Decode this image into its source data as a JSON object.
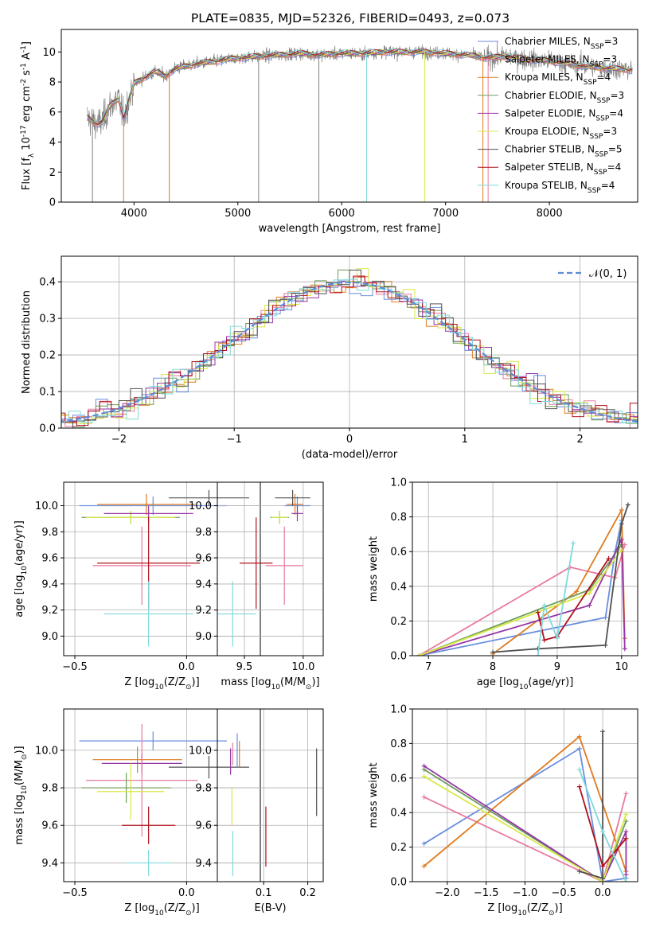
{
  "figure": {
    "title": "PLATE=0835, MJD=52326, FIBERID=0493, z=0.073"
  },
  "colors": {
    "Chabrier MILES": "#6a8ee0",
    "Salpeter MILES": "#e87a9e",
    "Kroupa MILES": "#e07b1f",
    "Chabrier ELODIE": "#6d9b5a",
    "Salpeter ELODIE": "#9637a8",
    "Kroupa ELODIE": "#d7e845",
    "Chabrier STELIB": "#505050",
    "Salpeter STELIB": "#b0101c",
    "Kroupa STELIB": "#7fd9dc",
    "data": "#808080",
    "normal": "#5b8bd6"
  },
  "chart_data": [
    {
      "id": "spectrum",
      "type": "line",
      "xlabel": "wavelength [Angstrom, rest frame]",
      "ylabel": "Flux [f_λ 10^-17 erg cm^-2 s^-1 A^-1]",
      "xlim": [
        3300,
        8850
      ],
      "ylim": [
        0,
        11.5
      ],
      "xticks": [
        4000,
        5000,
        6000,
        7000,
        8000
      ],
      "yticks": [
        0,
        2,
        4,
        6,
        8,
        10
      ],
      "legend": [
        "Chabrier MILES, N_SSP=3",
        "Salpeter MILES, N_SSP=3",
        "Kroupa MILES, N_SSP=4",
        "Chabrier ELODIE, N_SSP=3",
        "Salpeter ELODIE, N_SSP=4",
        "Kroupa ELODIE, N_SSP=3",
        "Chabrier STELIB, N_SSP=5",
        "Salpeter STELIB, N_SSP=4",
        "Kroupa STELIB, N_SSP=4"
      ],
      "continuum": {
        "x": [
          3550,
          3650,
          3700,
          3750,
          3800,
          3850,
          3900,
          3950,
          4000,
          4100,
          4200,
          4300,
          4400,
          4600,
          4800,
          5000,
          5200,
          5400,
          5600,
          5800,
          6000,
          6200,
          6400,
          6600,
          6800,
          7000,
          7200,
          7400,
          7600,
          7800,
          8000,
          8200,
          8400,
          8600,
          8800
        ],
        "y": [
          5.6,
          5.2,
          5.4,
          6.2,
          6.6,
          6.9,
          5.6,
          6.8,
          7.9,
          8.3,
          8.7,
          8.4,
          8.9,
          9.2,
          9.4,
          9.6,
          9.7,
          9.8,
          9.9,
          9.8,
          9.9,
          9.9,
          10.0,
          10.0,
          10.0,
          9.9,
          9.8,
          9.6,
          9.7,
          9.5,
          9.4,
          9.2,
          9.0,
          8.9,
          8.8
        ]
      },
      "spikes": [
        {
          "x": 3600,
          "y": 0
        },
        {
          "x": 3900,
          "y": 0
        },
        {
          "x": 4340,
          "y": 0
        },
        {
          "x": 5200,
          "y": 0
        },
        {
          "x": 5780,
          "y": 0
        },
        {
          "x": 6240,
          "y": 0
        },
        {
          "x": 6800,
          "y": 0
        },
        {
          "x": 7360,
          "y": 0
        },
        {
          "x": 7410,
          "y": 0
        }
      ]
    },
    {
      "id": "residuals",
      "type": "histogram",
      "xlabel": "(data-model)/error",
      "ylabel": "Normed distribution",
      "xlim": [
        -2.5,
        2.5
      ],
      "ylim": [
        0,
        0.47
      ],
      "xticks": [
        -2,
        -1,
        0,
        1,
        2
      ],
      "yticks": [
        0.0,
        0.1,
        0.2,
        0.3,
        0.4
      ],
      "bin_width": 0.1,
      "legend": [
        "𝒩(0, 1)"
      ]
    },
    {
      "id": "age-vs-Z",
      "type": "errorbar",
      "xlabel": "Z [log10(Z/Z⊙)]",
      "ylabel": "age  [log10(age/yr)]",
      "xlim": [
        -0.55,
        0.33
      ],
      "ylim": [
        8.85,
        10.18
      ],
      "xticks": [
        -0.5,
        0.0
      ],
      "yticks": [
        9.0,
        9.2,
        9.4,
        9.6,
        9.8,
        10.0
      ],
      "points": [
        {
          "model": "Chabrier MILES",
          "x": -0.15,
          "xerr": 0.33,
          "y": 10.0,
          "yerr": 0.07
        },
        {
          "model": "Kroupa MILES",
          "x": -0.18,
          "xerr": 0.22,
          "y": 10.01,
          "yerr": 0.08
        },
        {
          "model": "Chabrier ELODIE",
          "x": -0.25,
          "xerr": 0.22,
          "y": 9.91,
          "yerr": 0.05
        },
        {
          "model": "Kroupa ELODIE",
          "x": -0.25,
          "xerr": 0.2,
          "y": 9.91,
          "yerr": 0.05
        },
        {
          "model": "Salpeter ELODIE",
          "x": -0.17,
          "xerr": 0.2,
          "y": 9.94,
          "yerr": 0.06
        },
        {
          "model": "Chabrier STELIB",
          "x": 0.1,
          "xerr": 0.18,
          "y": 10.06,
          "yerr": 0.06
        },
        {
          "model": "Salpeter MILES",
          "x": -0.2,
          "xerr": 0.22,
          "y": 9.54,
          "yerr": 0.3
        },
        {
          "model": "Salpeter STELIB",
          "x": -0.17,
          "xerr": 0.23,
          "y": 9.56,
          "yerr": 0.35
        },
        {
          "model": "Kroupa STELIB",
          "x": -0.17,
          "xerr": 0.2,
          "y": 9.17,
          "yerr": 0.25
        }
      ]
    },
    {
      "id": "age-vs-mass",
      "type": "errorbar",
      "xlabel": "mass [log10(M/M⊙)]",
      "ylabel": "",
      "xlim": [
        9.27,
        10.17
      ],
      "ylim": [
        8.85,
        10.18
      ],
      "xticks": [
        9.5,
        10.0
      ],
      "yticks": [
        9.0,
        9.2,
        9.4,
        9.6,
        9.8,
        10.0
      ],
      "points": [
        {
          "model": "Chabrier MILES",
          "x": 9.95,
          "xerr": 0.11,
          "y": 10.0,
          "yerr": 0.07
        },
        {
          "model": "Kroupa MILES",
          "x": 9.93,
          "xerr": 0.07,
          "y": 10.01,
          "yerr": 0.08
        },
        {
          "model": "Chabrier ELODIE",
          "x": 9.8,
          "xerr": 0.08,
          "y": 9.91,
          "yerr": 0.05
        },
        {
          "model": "Kroupa ELODIE",
          "x": 9.8,
          "xerr": 0.07,
          "y": 9.91,
          "yerr": 0.05
        },
        {
          "model": "Salpeter ELODIE",
          "x": 9.95,
          "xerr": 0.05,
          "y": 9.94,
          "yerr": 0.06
        },
        {
          "model": "Chabrier STELIB",
          "x": 9.91,
          "xerr": 0.15,
          "y": 10.06,
          "yerr": 0.06
        },
        {
          "model": "Salpeter MILES",
          "x": 9.84,
          "xerr": 0.16,
          "y": 9.54,
          "yerr": 0.3
        },
        {
          "model": "Salpeter STELIB",
          "x": 9.6,
          "xerr": 0.14,
          "y": 9.56,
          "yerr": 0.35
        },
        {
          "model": "Kroupa STELIB",
          "x": 9.4,
          "xerr": 0.2,
          "y": 9.17,
          "yerr": 0.25
        }
      ]
    },
    {
      "id": "weight-vs-age",
      "type": "line",
      "xlabel": "age  [log10(age/yr)]",
      "ylabel": "mass weight",
      "xlim": [
        6.75,
        10.25
      ],
      "ylim": [
        0,
        1.0
      ],
      "xticks": [
        7,
        8,
        9,
        10
      ],
      "yticks": [
        0.0,
        0.2,
        0.4,
        0.6,
        0.8,
        1.0
      ],
      "series": [
        {
          "name": "Chabrier MILES",
          "x": [
            6.85,
            9.75,
            9.9,
            10.0
          ],
          "y": [
            0.0,
            0.22,
            0.6,
            0.78
          ]
        },
        {
          "name": "Salpeter MILES",
          "x": [
            6.85,
            9.2,
            9.9,
            10.05
          ],
          "y": [
            0.0,
            0.51,
            0.45,
            0.64
          ]
        },
        {
          "name": "Kroupa MILES",
          "x": [
            8.0,
            9.3,
            10.0,
            10.05
          ],
          "y": [
            0.01,
            0.37,
            0.84,
            0.1
          ]
        },
        {
          "name": "Chabrier ELODIE",
          "x": [
            6.85,
            9.5,
            10.0
          ],
          "y": [
            0.0,
            0.38,
            0.64
          ]
        },
        {
          "name": "Salpeter ELODIE",
          "x": [
            6.85,
            9.5,
            10.0,
            10.05
          ],
          "y": [
            0.0,
            0.29,
            0.67,
            0.04
          ]
        },
        {
          "name": "Kroupa ELODIE",
          "x": [
            6.85,
            9.5,
            10.0
          ],
          "y": [
            0.0,
            0.36,
            0.61
          ]
        },
        {
          "name": "Chabrier STELIB",
          "x": [
            8.0,
            8.7,
            9.75,
            10.0,
            10.1
          ],
          "y": [
            0.02,
            0.04,
            0.06,
            0.76,
            0.87
          ]
        },
        {
          "name": "Salpeter STELIB",
          "x": [
            8.7,
            8.8,
            9.0,
            9.8
          ],
          "y": [
            0.25,
            0.09,
            0.11,
            0.56
          ]
        },
        {
          "name": "Kroupa STELIB",
          "x": [
            8.7,
            8.8,
            9.0,
            9.25
          ],
          "y": [
            0.0,
            0.29,
            0.1,
            0.65
          ]
        }
      ]
    },
    {
      "id": "mass-vs-Z",
      "type": "errorbar",
      "xlabel": "Z [log10(Z/Z⊙)]",
      "ylabel": "mass [log10(M/M⊙)]",
      "xlim": [
        -0.55,
        0.33
      ],
      "ylim": [
        9.3,
        10.22
      ],
      "xticks": [
        -0.5,
        0.0
      ],
      "yticks": [
        9.4,
        9.6,
        9.8,
        10.0
      ],
      "points": [
        {
          "model": "Chabrier MILES",
          "x": -0.15,
          "xerr": 0.33,
          "y": 10.05,
          "yerr": 0.05
        },
        {
          "model": "Kroupa MILES",
          "x": -0.22,
          "xerr": 0.2,
          "y": 9.95,
          "yerr": 0.07
        },
        {
          "model": "Salpeter ELODIE",
          "x": -0.2,
          "xerr": 0.18,
          "y": 9.93,
          "yerr": 0.05
        },
        {
          "model": "Chabrier STELIB",
          "x": 0.1,
          "xerr": 0.18,
          "y": 9.91,
          "yerr": 0.06
        },
        {
          "model": "Salpeter MILES",
          "x": -0.2,
          "xerr": 0.25,
          "y": 9.84,
          "yerr": 0.3
        },
        {
          "model": "Chabrier ELODIE",
          "x": -0.27,
          "xerr": 0.2,
          "y": 9.8,
          "yerr": 0.08
        },
        {
          "model": "Kroupa ELODIE",
          "x": -0.25,
          "xerr": 0.15,
          "y": 9.78,
          "yerr": 0.15
        },
        {
          "model": "Salpeter STELIB",
          "x": -0.17,
          "xerr": 0.12,
          "y": 9.6,
          "yerr": 0.1
        },
        {
          "model": "Kroupa STELIB",
          "x": -0.17,
          "xerr": 0.1,
          "y": 9.4,
          "yerr": 0.07
        }
      ]
    },
    {
      "id": "mass-vs-ebv",
      "type": "errorbar",
      "xlabel": "E(B-V)",
      "ylabel": "",
      "xlim": [
        -0.005,
        0.235
      ],
      "ylim": [
        9.3,
        10.22
      ],
      "xticks": [
        0.1,
        0.2
      ],
      "yticks": [
        9.4,
        9.6,
        9.8,
        10.0
      ],
      "points": [
        {
          "model": "Salpeter MILES",
          "x": 0.03,
          "y": 9.98,
          "yerr": 0.06
        },
        {
          "model": "Chabrier MILES",
          "x": 0.04,
          "y": 10.0,
          "yerr": 0.09
        },
        {
          "model": "Kroupa MILES",
          "x": 0.045,
          "y": 9.98,
          "yerr": 0.07
        },
        {
          "model": "Salpeter ELODIE",
          "x": 0.025,
          "y": 9.94,
          "yerr": 0.07
        },
        {
          "model": "Kroupa ELODIE",
          "x": 0.028,
          "y": 9.7,
          "yerr": 0.1
        },
        {
          "model": "Kroupa STELIB",
          "x": 0.03,
          "y": 9.45,
          "yerr": 0.12
        },
        {
          "model": "Salpeter STELIB",
          "x": 0.105,
          "y": 9.54,
          "yerr": 0.16
        },
        {
          "model": "Chabrier STELIB",
          "x": 0.22,
          "y": 9.83,
          "yerr": 0.18
        }
      ]
    },
    {
      "id": "weight-vs-Z",
      "type": "line",
      "xlabel": "Z [log10(Z/Z⊙)]",
      "ylabel": "mass weight",
      "xlim": [
        -2.45,
        0.45
      ],
      "ylim": [
        0,
        1.0
      ],
      "xticks": [
        -2.0,
        -1.5,
        -1.0,
        -0.5,
        0.0
      ],
      "yticks": [
        0.0,
        0.2,
        0.4,
        0.6,
        0.8,
        1.0
      ],
      "series": [
        {
          "name": "Chabrier MILES",
          "x": [
            -2.3,
            -0.3,
            0.0,
            0.3
          ],
          "y": [
            0.22,
            0.77,
            0.0,
            0.02
          ]
        },
        {
          "name": "Salpeter MILES",
          "x": [
            -2.3,
            0.0,
            0.3
          ],
          "y": [
            0.49,
            0.0,
            0.51
          ]
        },
        {
          "name": "Kroupa MILES",
          "x": [
            -2.3,
            -0.3,
            0.3
          ],
          "y": [
            0.09,
            0.84,
            0.06
          ]
        },
        {
          "name": "Chabrier ELODIE",
          "x": [
            -2.3,
            0.0,
            0.3
          ],
          "y": [
            0.65,
            0.0,
            0.35
          ]
        },
        {
          "name": "Salpeter ELODIE",
          "x": [
            -2.3,
            0.0,
            0.3,
            0.3
          ],
          "y": [
            0.67,
            0.0,
            0.29,
            0.04
          ]
        },
        {
          "name": "Kroupa ELODIE",
          "x": [
            -2.3,
            0.0,
            0.3
          ],
          "y": [
            0.61,
            0.0,
            0.39
          ]
        },
        {
          "name": "Chabrier STELIB",
          "x": [
            -0.3,
            0.0,
            0.0
          ],
          "y": [
            0.06,
            0.02,
            0.87
          ]
        },
        {
          "name": "Salpeter STELIB",
          "x": [
            -0.3,
            0.0,
            0.3
          ],
          "y": [
            0.55,
            0.09,
            0.25
          ]
        },
        {
          "name": "Kroupa STELIB",
          "x": [
            -0.3,
            0.0,
            0.3
          ],
          "y": [
            0.65,
            0.29,
            0.0
          ]
        }
      ]
    }
  ]
}
